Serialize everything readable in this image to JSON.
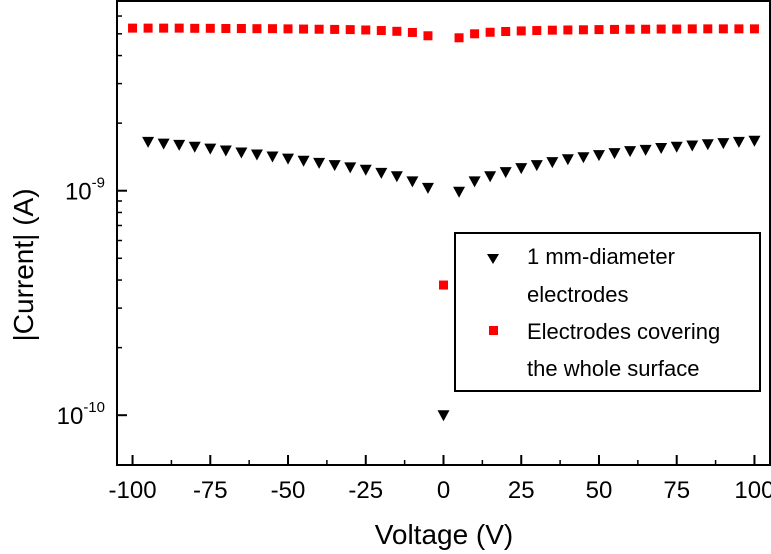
{
  "chart_data": {
    "type": "scatter",
    "xlabel": "Voltage (V)",
    "ylabel": "|Current| (A)",
    "xlim": [
      -105,
      105
    ],
    "ylim": [
      6e-11,
      7e-09
    ],
    "y_scale": "log",
    "x_ticks": [
      -100,
      -75,
      -50,
      -25,
      0,
      25,
      50,
      75,
      100
    ],
    "x_tick_labels": [
      "-100",
      "-75",
      "-50",
      "-25",
      "0",
      "25",
      "50",
      "75",
      "100"
    ],
    "y_ticks": [
      1e-10,
      1e-09
    ],
    "y_tick_labels": [
      {
        "base": "10",
        "exp": "-10"
      },
      {
        "base": "10",
        "exp": "-9"
      }
    ],
    "legend_position": "bottom-right",
    "colors": {
      "series1": "#000000",
      "series2": "#ff0000"
    },
    "series": [
      {
        "name": "1 mm-diameter electrodes",
        "marker": "triangle-down",
        "points": [
          {
            "x": -95,
            "y": 1.65e-09
          },
          {
            "x": -90,
            "y": 1.62e-09
          },
          {
            "x": -85,
            "y": 1.6e-09
          },
          {
            "x": -80,
            "y": 1.57e-09
          },
          {
            "x": -75,
            "y": 1.54e-09
          },
          {
            "x": -70,
            "y": 1.51e-09
          },
          {
            "x": -65,
            "y": 1.48e-09
          },
          {
            "x": -60,
            "y": 1.45e-09
          },
          {
            "x": -55,
            "y": 1.42e-09
          },
          {
            "x": -50,
            "y": 1.39e-09
          },
          {
            "x": -45,
            "y": 1.36e-09
          },
          {
            "x": -40,
            "y": 1.33e-09
          },
          {
            "x": -35,
            "y": 1.3e-09
          },
          {
            "x": -30,
            "y": 1.27e-09
          },
          {
            "x": -25,
            "y": 1.24e-09
          },
          {
            "x": -20,
            "y": 1.2e-09
          },
          {
            "x": -15,
            "y": 1.16e-09
          },
          {
            "x": -10,
            "y": 1.1e-09
          },
          {
            "x": -5,
            "y": 1.03e-09
          },
          {
            "x": 0,
            "y": 1e-10
          },
          {
            "x": 5,
            "y": 9.9e-10
          },
          {
            "x": 10,
            "y": 1.1e-09
          },
          {
            "x": 15,
            "y": 1.16e-09
          },
          {
            "x": 20,
            "y": 1.21e-09
          },
          {
            "x": 25,
            "y": 1.26e-09
          },
          {
            "x": 30,
            "y": 1.3e-09
          },
          {
            "x": 35,
            "y": 1.34e-09
          },
          {
            "x": 40,
            "y": 1.38e-09
          },
          {
            "x": 45,
            "y": 1.41e-09
          },
          {
            "x": 50,
            "y": 1.44e-09
          },
          {
            "x": 55,
            "y": 1.47e-09
          },
          {
            "x": 60,
            "y": 1.5e-09
          },
          {
            "x": 65,
            "y": 1.52e-09
          },
          {
            "x": 70,
            "y": 1.55e-09
          },
          {
            "x": 75,
            "y": 1.57e-09
          },
          {
            "x": 80,
            "y": 1.59e-09
          },
          {
            "x": 85,
            "y": 1.61e-09
          },
          {
            "x": 90,
            "y": 1.63e-09
          },
          {
            "x": 95,
            "y": 1.65e-09
          },
          {
            "x": 100,
            "y": 1.67e-09
          }
        ]
      },
      {
        "name": "Electrodes covering the whole surface",
        "marker": "square",
        "points": [
          {
            "x": -100,
            "y": 5.3e-09
          },
          {
            "x": -95,
            "y": 5.3e-09
          },
          {
            "x": -90,
            "y": 5.3e-09
          },
          {
            "x": -85,
            "y": 5.3e-09
          },
          {
            "x": -80,
            "y": 5.29e-09
          },
          {
            "x": -75,
            "y": 5.29e-09
          },
          {
            "x": -70,
            "y": 5.28e-09
          },
          {
            "x": -65,
            "y": 5.28e-09
          },
          {
            "x": -60,
            "y": 5.27e-09
          },
          {
            "x": -55,
            "y": 5.27e-09
          },
          {
            "x": -50,
            "y": 5.26e-09
          },
          {
            "x": -45,
            "y": 5.25e-09
          },
          {
            "x": -40,
            "y": 5.24e-09
          },
          {
            "x": -35,
            "y": 5.23e-09
          },
          {
            "x": -30,
            "y": 5.22e-09
          },
          {
            "x": -25,
            "y": 5.2e-09
          },
          {
            "x": -20,
            "y": 5.17e-09
          },
          {
            "x": -15,
            "y": 5.13e-09
          },
          {
            "x": -10,
            "y": 5.07e-09
          },
          {
            "x": -5,
            "y": 4.9e-09
          },
          {
            "x": 0,
            "y": 3.8e-10
          },
          {
            "x": 5,
            "y": 4.8e-09
          },
          {
            "x": 10,
            "y": 5e-09
          },
          {
            "x": 15,
            "y": 5.08e-09
          },
          {
            "x": 20,
            "y": 5.12e-09
          },
          {
            "x": 25,
            "y": 5.15e-09
          },
          {
            "x": 30,
            "y": 5.17e-09
          },
          {
            "x": 35,
            "y": 5.19e-09
          },
          {
            "x": 40,
            "y": 5.2e-09
          },
          {
            "x": 45,
            "y": 5.21e-09
          },
          {
            "x": 50,
            "y": 5.22e-09
          },
          {
            "x": 55,
            "y": 5.23e-09
          },
          {
            "x": 60,
            "y": 5.24e-09
          },
          {
            "x": 65,
            "y": 5.24e-09
          },
          {
            "x": 70,
            "y": 5.25e-09
          },
          {
            "x": 75,
            "y": 5.25e-09
          },
          {
            "x": 80,
            "y": 5.26e-09
          },
          {
            "x": 85,
            "y": 5.26e-09
          },
          {
            "x": 90,
            "y": 5.26e-09
          },
          {
            "x": 95,
            "y": 5.26e-09
          },
          {
            "x": 100,
            "y": 5.26e-09
          }
        ]
      }
    ],
    "legend": {
      "entries": [
        {
          "marker": "triangle-down",
          "color": "#000000",
          "lines": [
            "1 mm-diameter",
            "electrodes"
          ]
        },
        {
          "marker": "square",
          "color": "#ff0000",
          "lines": [
            "Electrodes covering",
            "the whole surface"
          ]
        }
      ]
    }
  }
}
